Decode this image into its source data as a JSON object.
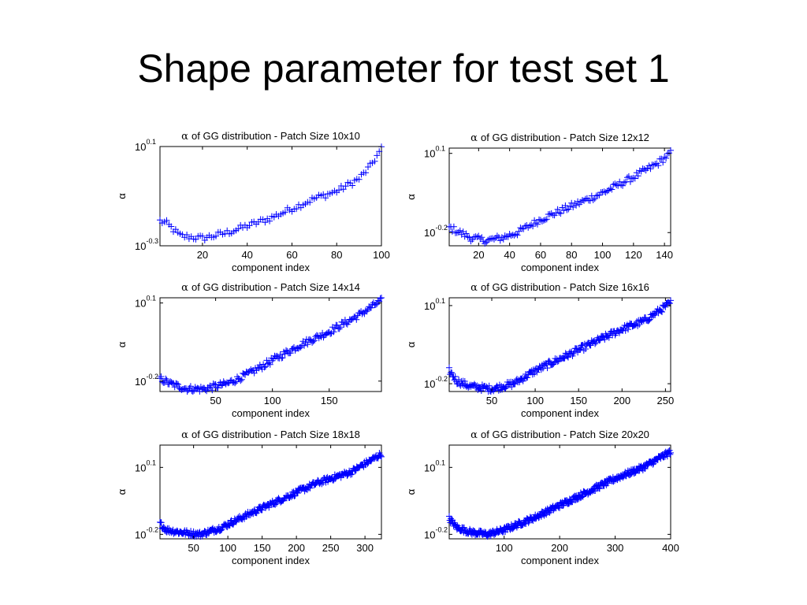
{
  "slide": {
    "title": "Shape parameter for test set 1"
  },
  "colors": {
    "marker": "#0000ff",
    "axes": "#000000",
    "background": "#ffffff"
  },
  "chart_data": [
    {
      "type": "scatter",
      "title_prefix": "α",
      "title": "of GG distribution - Patch Size 10x10",
      "xlabel": "component index",
      "ylabel": "α",
      "y_scale": "log",
      "xlim": [
        1,
        100
      ],
      "ylim": [
        -0.3,
        0.1
      ],
      "xticks": [
        20,
        40,
        60,
        80,
        100
      ],
      "yticks": [
        {
          "base": "10",
          "exp": "0.1",
          "value": 0.1
        },
        {
          "base": "10",
          "exp": "-0.3",
          "value": -0.3
        }
      ],
      "n_points": 100,
      "curve": [
        [
          1,
          -0.2
        ],
        [
          4,
          -0.21
        ],
        [
          10,
          -0.26
        ],
        [
          20,
          -0.27
        ],
        [
          30,
          -0.25
        ],
        [
          40,
          -0.22
        ],
        [
          50,
          -0.19
        ],
        [
          60,
          -0.15
        ],
        [
          70,
          -0.11
        ],
        [
          80,
          -0.08
        ],
        [
          90,
          -0.03
        ],
        [
          95,
          0.02
        ],
        [
          100,
          0.09
        ]
      ]
    },
    {
      "type": "scatter",
      "title_prefix": "α",
      "title": "of GG distribution - Patch Size 12x12",
      "xlabel": "component index",
      "ylabel": "α",
      "y_scale": "log",
      "xlim": [
        1,
        144
      ],
      "ylim": [
        -0.25,
        0.12
      ],
      "xticks": [
        20,
        40,
        60,
        80,
        100,
        120,
        140
      ],
      "yticks": [
        {
          "base": "10",
          "exp": "0.1",
          "value": 0.1
        },
        {
          "base": "10",
          "exp": "-0.2",
          "value": -0.2
        }
      ],
      "n_points": 144,
      "curve": [
        [
          1,
          -0.18
        ],
        [
          8,
          -0.2
        ],
        [
          15,
          -0.22
        ],
        [
          25,
          -0.23
        ],
        [
          35,
          -0.22
        ],
        [
          45,
          -0.2
        ],
        [
          60,
          -0.15
        ],
        [
          80,
          -0.1
        ],
        [
          100,
          -0.05
        ],
        [
          120,
          0.01
        ],
        [
          135,
          0.06
        ],
        [
          144,
          0.1
        ]
      ]
    },
    {
      "type": "scatter",
      "title_prefix": "α",
      "title": "of GG distribution - Patch Size 14x14",
      "xlabel": "component index",
      "ylabel": "α",
      "y_scale": "log",
      "xlim": [
        1,
        196
      ],
      "ylim": [
        -0.24,
        0.12
      ],
      "xticks": [
        50,
        100,
        150
      ],
      "yticks": [
        {
          "base": "10",
          "exp": "0.1",
          "value": 0.1
        },
        {
          "base": "10",
          "exp": "-0.2",
          "value": -0.2
        }
      ],
      "n_points": 196,
      "curve": [
        [
          1,
          -0.19
        ],
        [
          10,
          -0.21
        ],
        [
          25,
          -0.23
        ],
        [
          40,
          -0.23
        ],
        [
          60,
          -0.21
        ],
        [
          80,
          -0.17
        ],
        [
          100,
          -0.12
        ],
        [
          125,
          -0.06
        ],
        [
          150,
          -0.01
        ],
        [
          175,
          0.05
        ],
        [
          196,
          0.11
        ]
      ]
    },
    {
      "type": "scatter",
      "title_prefix": "α",
      "title": "of GG distribution - Patch Size 16x16",
      "xlabel": "component index",
      "ylabel": "α",
      "y_scale": "log",
      "xlim": [
        1,
        256
      ],
      "ylim": [
        -0.23,
        0.13
      ],
      "xticks": [
        50,
        100,
        150,
        200,
        250
      ],
      "yticks": [
        {
          "base": "10",
          "exp": "0.1",
          "value": 0.1
        },
        {
          "base": "10",
          "exp": "-0.2",
          "value": -0.2
        }
      ],
      "n_points": 256,
      "curve": [
        [
          1,
          -0.15
        ],
        [
          10,
          -0.19
        ],
        [
          25,
          -0.21
        ],
        [
          50,
          -0.22
        ],
        [
          75,
          -0.2
        ],
        [
          100,
          -0.15
        ],
        [
          150,
          -0.07
        ],
        [
          200,
          0.01
        ],
        [
          225,
          0.04
        ],
        [
          256,
          0.11
        ]
      ]
    },
    {
      "type": "scatter",
      "title_prefix": "α",
      "title": "of GG distribution - Patch Size 18x18",
      "xlabel": "component index",
      "ylabel": "α",
      "y_scale": "log",
      "xlim": [
        1,
        324
      ],
      "ylim": [
        -0.22,
        0.2
      ],
      "xticks": [
        50,
        100,
        150,
        200,
        250,
        300
      ],
      "yticks": [
        {
          "base": "10",
          "exp": "0.1",
          "value": 0.1
        },
        {
          "base": "10",
          "exp": "-0.2",
          "value": -0.2
        }
      ],
      "n_points": 324,
      "curve": [
        [
          1,
          -0.15
        ],
        [
          10,
          -0.18
        ],
        [
          30,
          -0.19
        ],
        [
          60,
          -0.2
        ],
        [
          90,
          -0.17
        ],
        [
          130,
          -0.11
        ],
        [
          180,
          -0.04
        ],
        [
          230,
          0.03
        ],
        [
          280,
          0.08
        ],
        [
          324,
          0.16
        ]
      ]
    },
    {
      "type": "scatter",
      "title_prefix": "α",
      "title": "of GG distribution - Patch Size 20x20",
      "xlabel": "component index",
      "ylabel": "α",
      "y_scale": "log",
      "xlim": [
        1,
        400
      ],
      "ylim": [
        -0.22,
        0.2
      ],
      "xticks": [
        100,
        200,
        300,
        400
      ],
      "yticks": [
        {
          "base": "10",
          "exp": "0.1",
          "value": 0.1
        },
        {
          "base": "10",
          "exp": "-0.2",
          "value": -0.2
        }
      ],
      "n_points": 400,
      "curve": [
        [
          1,
          -0.13
        ],
        [
          15,
          -0.17
        ],
        [
          40,
          -0.19
        ],
        [
          70,
          -0.2
        ],
        [
          100,
          -0.18
        ],
        [
          150,
          -0.13
        ],
        [
          200,
          -0.07
        ],
        [
          250,
          -0.01
        ],
        [
          300,
          0.05
        ],
        [
          350,
          0.1
        ],
        [
          400,
          0.17
        ]
      ]
    }
  ]
}
